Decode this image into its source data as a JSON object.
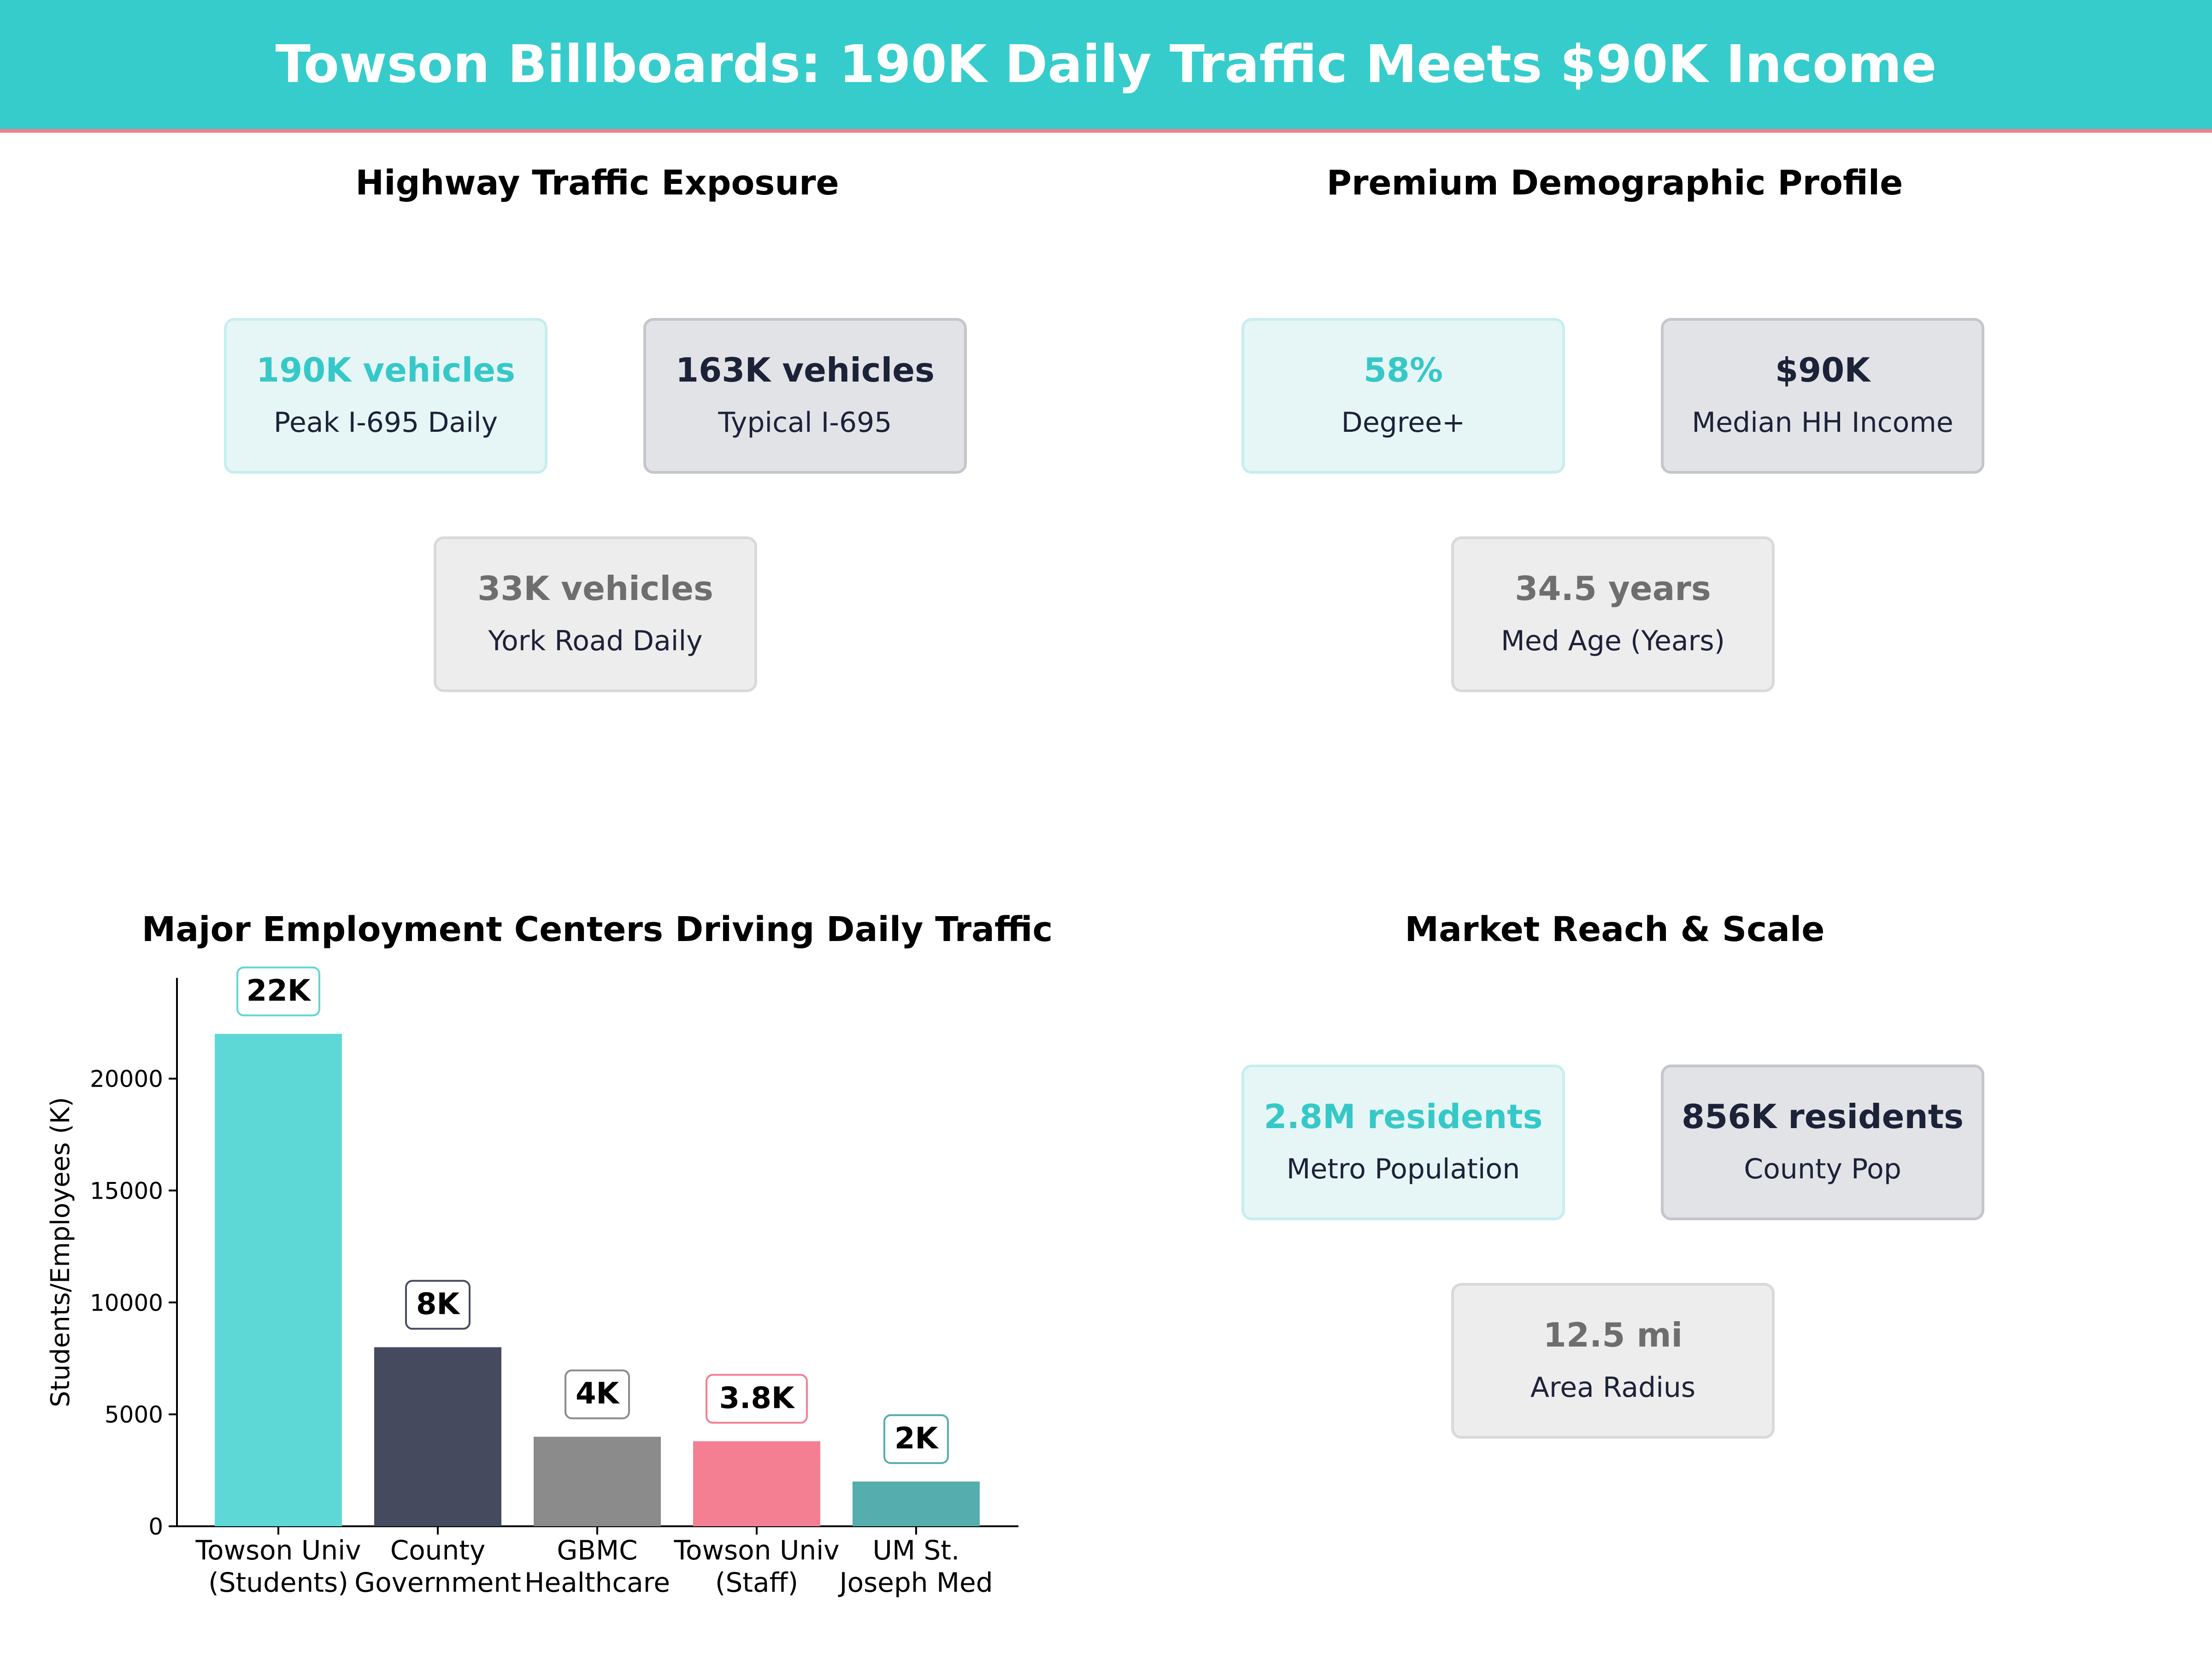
{
  "header": {
    "title": "Towson Billboards: 190K Daily Traffic Meets $90K Income",
    "background_color": "#36cccc",
    "accent_rule_color": "#f07f90"
  },
  "traffic": {
    "title": "Highway Traffic Exposure",
    "cards": [
      {
        "value": "190K vehicles",
        "label": "Peak I-695 Daily",
        "style": "teal"
      },
      {
        "value": "163K vehicles",
        "label": "Typical I-695",
        "style": "navy"
      },
      {
        "value": "33K vehicles",
        "label": "York Road Daily",
        "style": "gray"
      }
    ]
  },
  "demographics": {
    "title": "Premium Demographic Profile",
    "cards": [
      {
        "value": "58%",
        "label": "Degree+",
        "style": "teal"
      },
      {
        "value": "$90K",
        "label": "Median HH Income",
        "style": "navy"
      },
      {
        "value": "34.5 years",
        "label": "Med Age (Years)",
        "style": "gray"
      }
    ]
  },
  "market": {
    "title": "Market Reach & Scale",
    "cards": [
      {
        "value": "2.8M residents",
        "label": "Metro Population",
        "style": "teal"
      },
      {
        "value": "856K residents",
        "label": "County Pop",
        "style": "navy"
      },
      {
        "value": "12.5 mi",
        "label": "Area Radius",
        "style": "gray"
      }
    ]
  },
  "employment": {
    "title": "Major Employment Centers Driving Daily Traffic"
  },
  "chart_data": {
    "type": "bar",
    "title": "Major Employment Centers Driving Daily Traffic",
    "xlabel": "",
    "ylabel": "Students/Employees (K)",
    "ylim": [
      0,
      24500
    ],
    "yticks": [
      0,
      5000,
      10000,
      15000,
      20000
    ],
    "grid": false,
    "categories": [
      [
        "Towson Univ",
        "(Students)"
      ],
      [
        "County",
        "Government"
      ],
      [
        "GBMC",
        "Healthcare"
      ],
      [
        "Towson Univ",
        "(Staff)"
      ],
      [
        "UM St.",
        "Joseph Med"
      ]
    ],
    "values": [
      22000,
      8000,
      4000,
      3800,
      2000
    ],
    "data_labels": [
      "22K",
      "8K",
      "4K",
      "3.8K",
      "2K"
    ],
    "colors": [
      "#5ed8d6",
      "#454a5e",
      "#8b8b8b",
      "#f47f93",
      "#55adad"
    ]
  }
}
